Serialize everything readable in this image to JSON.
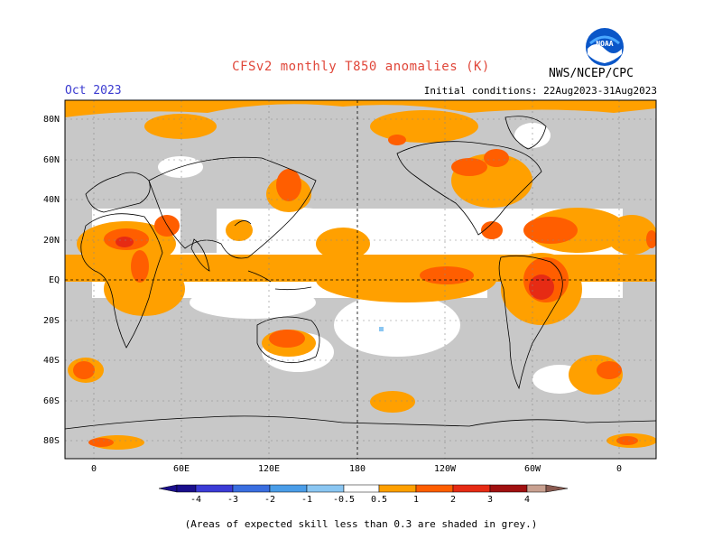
{
  "header": {
    "title": "CFSv2 monthly T850 anomalies (K)",
    "month": "Oct 2023",
    "initial_conditions": "Initial conditions: 22Aug2023-31Aug2023",
    "agency": "NWS/NCEP/CPC",
    "logo_text": "NOAA"
  },
  "map": {
    "lat_labels": [
      "80N",
      "60N",
      "40N",
      "20N",
      "EQ",
      "20S",
      "40S",
      "60S",
      "80S"
    ],
    "lon_labels": [
      "0",
      "60E",
      "120E",
      "180",
      "120W",
      "60W",
      "0"
    ]
  },
  "legend": {
    "colors": [
      "#1a0f8c",
      "#3b3bd6",
      "#3a6ee0",
      "#4a9de8",
      "#8ac6f2",
      "#ffffff",
      "#ffa000",
      "#ff5e00",
      "#e62b14",
      "#a01010",
      "#c8a090",
      "#8a5a50"
    ],
    "tick_labels": [
      "-4",
      "-3",
      "-2",
      "-1",
      "-0.5",
      "0.5",
      "1",
      "2",
      "3",
      "4"
    ]
  },
  "footnote": "(Areas of expected skill less than 0.3 are shaded in grey.)",
  "colors": {
    "skill_grey": "#c8c8c8",
    "orange": "#ffa000",
    "red_orange": "#ff5e00",
    "red": "#e62b14"
  }
}
